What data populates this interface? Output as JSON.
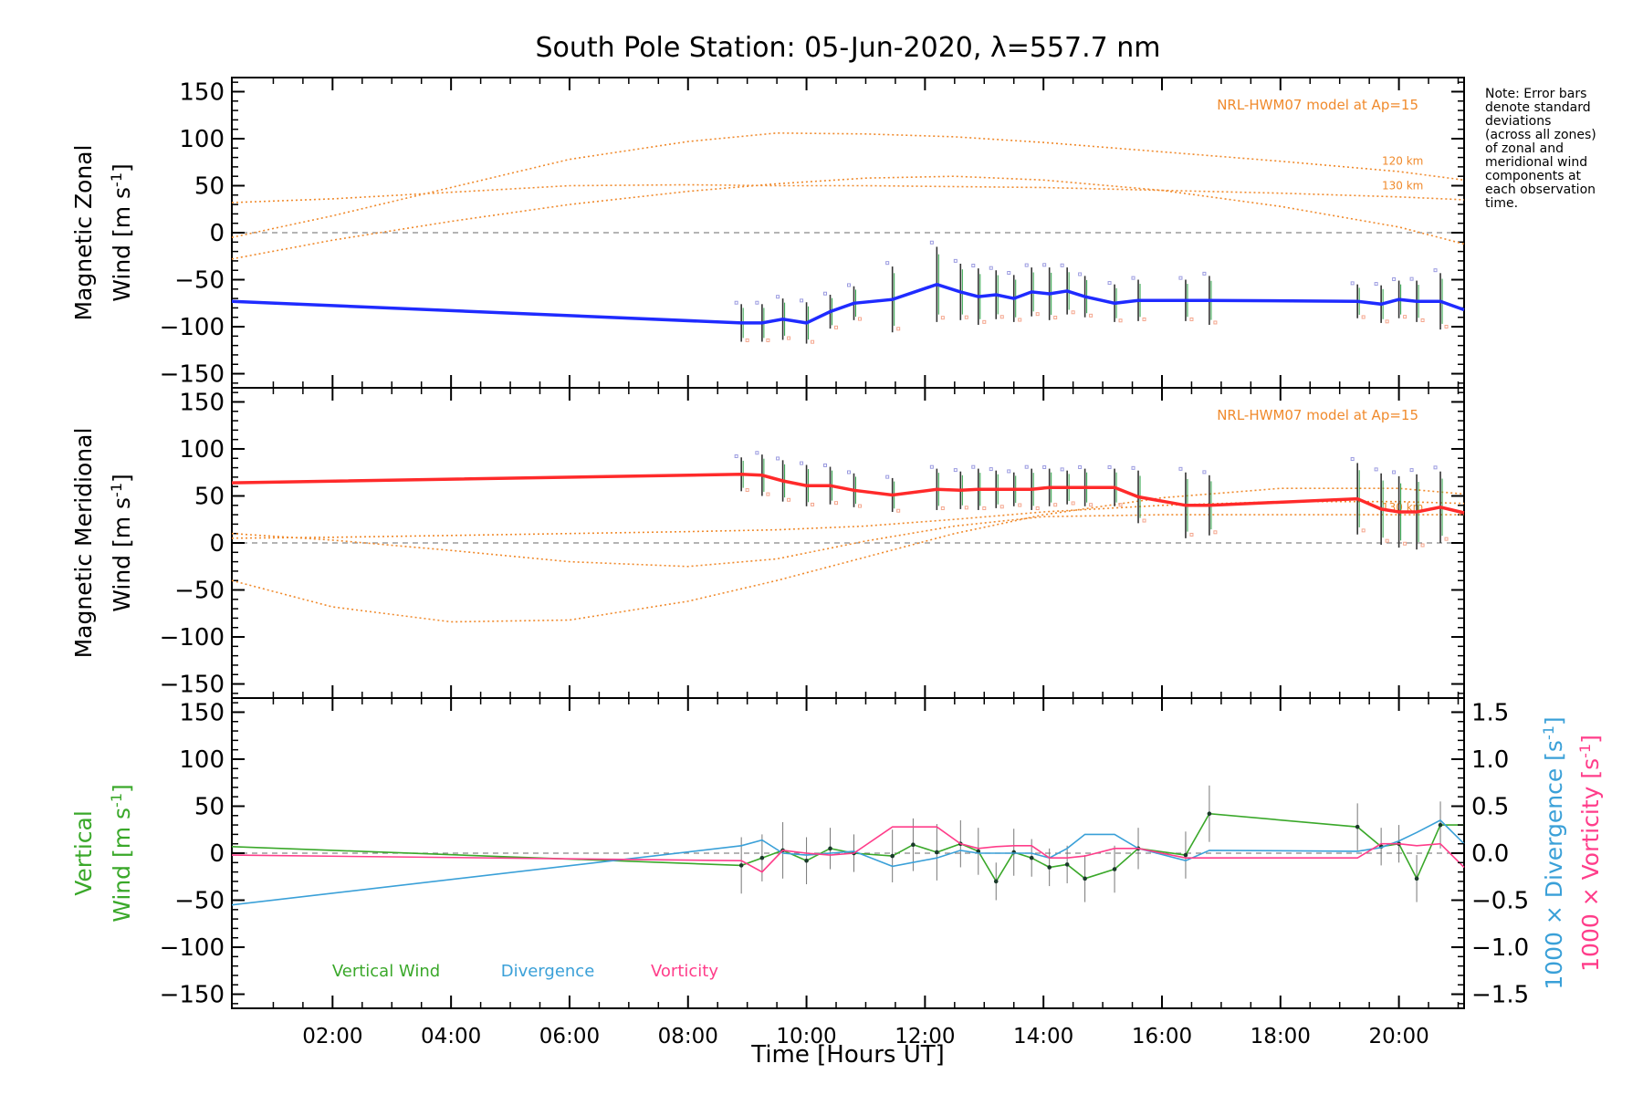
{
  "title": "South Pole Station: 05-Jun-2020, λ=557.7 nm",
  "xlabel": "Time [Hours UT]",
  "x_ticks": [
    "02:00",
    "04:00",
    "06:00",
    "08:00",
    "10:00",
    "12:00",
    "14:00",
    "16:00",
    "18:00",
    "20:00"
  ],
  "x_tick_hours": [
    2,
    4,
    6,
    8,
    10,
    12,
    14,
    16,
    18,
    20
  ],
  "note_lines": [
    "Note: Error bars",
    "denote standard",
    "deviations",
    "(across all zones)",
    "of zonal and",
    "meridional wind",
    "components at",
    "each observation",
    "time."
  ],
  "colors": {
    "zonal": "#1f2bff",
    "meridional": "#ff2a2a",
    "model": "#f08a2c",
    "vertical": "#3aa82a",
    "divergence": "#3aa0d8",
    "vorticity": "#ff3d8a",
    "zero_line": "#888888",
    "errbar": "#555555",
    "scatter_blue": "#9a9ae0",
    "scatter_red": "#f4a58c"
  },
  "chart_data": [
    {
      "type": "line",
      "id": "zonal",
      "ylabel_line1": "Magnetic Zonal",
      "ylabel_line2": "Wind [m s",
      "ylabel_sup": "-1",
      "ylabel_close": "]",
      "xlim": [
        0.3,
        21.1
      ],
      "ylim": [
        -165,
        165
      ],
      "y_ticks": [
        150,
        100,
        50,
        0,
        -50,
        -100,
        -150
      ],
      "model_label": "NRL-HWM07 model at Ap=15",
      "model_alt_labels": [
        "130 km",
        "120 km"
      ],
      "series": [
        {
          "name": "Zonal Wind",
          "x": [
            0.3,
            8.9,
            9.25,
            9.6,
            10.0,
            10.4,
            10.8,
            11.45,
            12.2,
            12.6,
            12.9,
            13.2,
            13.5,
            13.8,
            14.1,
            14.4,
            14.7,
            15.2,
            15.6,
            16.4,
            16.8,
            19.3,
            19.7,
            20.0,
            20.3,
            20.7,
            21.1
          ],
          "y": [
            -73,
            -96,
            -96,
            -92,
            -96,
            -84,
            -75,
            -71,
            -55,
            -63,
            -68,
            -66,
            -70,
            -63,
            -65,
            -62,
            -68,
            -75,
            -72,
            -72,
            -72,
            -73,
            -76,
            -71,
            -73,
            -73,
            -82
          ],
          "err": [
            0,
            20,
            20,
            22,
            22,
            18,
            18,
            35,
            40,
            30,
            30,
            26,
            25,
            26,
            28,
            25,
            22,
            20,
            22,
            22,
            26,
            18,
            20,
            20,
            22,
            30,
            0
          ]
        }
      ],
      "model_lines": [
        {
          "x": [
            0.3,
            2,
            4,
            6,
            8,
            9.5,
            11,
            12.5,
            14,
            16,
            18,
            20,
            21.1
          ],
          "y": [
            32,
            36,
            43,
            50,
            51,
            50,
            50,
            49,
            48,
            45,
            42,
            38,
            35
          ]
        },
        {
          "x": [
            0.3,
            2,
            4,
            6,
            8,
            9.5,
            11,
            12.5,
            14,
            16,
            18,
            20,
            21.1
          ],
          "y": [
            -5,
            18,
            48,
            78,
            97,
            106,
            105,
            102,
            96,
            86,
            76,
            65,
            56
          ]
        },
        {
          "x": [
            0.3,
            2,
            4,
            6,
            8,
            9.5,
            11,
            12.5,
            14,
            16,
            18,
            20,
            21.1
          ],
          "y": [
            -28,
            -8,
            12,
            30,
            44,
            52,
            58,
            60,
            56,
            45,
            28,
            6,
            -12
          ]
        }
      ]
    },
    {
      "type": "line",
      "id": "meridional",
      "ylabel_line1": "Magnetic Meridional",
      "ylabel_line2": "Wind [m s",
      "ylabel_sup": "-1",
      "ylabel_close": "]",
      "xlim": [
        0.3,
        21.1
      ],
      "ylim": [
        -165,
        165
      ],
      "y_ticks": [
        150,
        100,
        50,
        0,
        -50,
        -100,
        -150
      ],
      "model_label": "NRL-HWM07 model at Ap=15",
      "model_alt_labels": [
        "130 km"
      ],
      "series": [
        {
          "name": "Meridional Wind",
          "x": [
            0.3,
            8.9,
            9.25,
            9.6,
            10.0,
            10.4,
            10.8,
            11.45,
            12.2,
            12.6,
            12.9,
            13.2,
            13.5,
            13.8,
            14.1,
            14.4,
            14.7,
            15.2,
            15.6,
            16.4,
            16.8,
            19.3,
            19.7,
            20.0,
            20.3,
            20.7,
            21.1
          ],
          "y": [
            64,
            73,
            72,
            66,
            61,
            61,
            56,
            51,
            57,
            56,
            57,
            57,
            57,
            57,
            59,
            59,
            59,
            59,
            49,
            40,
            40,
            47,
            36,
            33,
            33,
            38,
            32
          ],
          "err": [
            0,
            18,
            22,
            22,
            22,
            20,
            18,
            18,
            22,
            20,
            22,
            20,
            18,
            22,
            20,
            18,
            20,
            20,
            28,
            35,
            32,
            38,
            38,
            38,
            40,
            38,
            0
          ]
        }
      ],
      "model_lines": [
        {
          "x": [
            0.3,
            2,
            4,
            6,
            8,
            9.5,
            11,
            12.5,
            14,
            16,
            18,
            20,
            21.1
          ],
          "y": [
            10,
            3,
            -8,
            -20,
            -25,
            -17,
            2,
            18,
            28,
            30,
            30,
            30,
            30
          ]
        },
        {
          "x": [
            0.3,
            2,
            4,
            6,
            8,
            9.5,
            11,
            12.5,
            14,
            16,
            18,
            20,
            21.1
          ],
          "y": [
            -40,
            -68,
            -84,
            -82,
            -62,
            -40,
            -15,
            10,
            30,
            48,
            58,
            58,
            52
          ]
        },
        {
          "x": [
            0.3,
            2,
            4,
            6,
            8,
            9.5,
            11,
            12.5,
            14,
            16,
            18,
            20,
            21.1
          ],
          "y": [
            5,
            6,
            8,
            10,
            12,
            14,
            18,
            25,
            33,
            40,
            44,
            44,
            42
          ]
        }
      ]
    },
    {
      "type": "line",
      "id": "vertical",
      "ylabel_line1": "Vertical",
      "ylabel_line2": "Wind [m s",
      "ylabel_sup": "-1",
      "ylabel_close": "]",
      "right_label_div": "1000 × Divergence [s",
      "right_label_vort": "1000 × Vorticity [s",
      "right_sup": "-1",
      "right_close": "]",
      "xlim": [
        0.3,
        21.1
      ],
      "ylim": [
        -165,
        165
      ],
      "y_ticks": [
        150,
        100,
        50,
        0,
        -50,
        -100,
        -150
      ],
      "y2lim": [
        -1.65,
        1.65
      ],
      "y2_ticks": [
        1.5,
        1.0,
        0.5,
        0.0,
        -0.5,
        -1.0,
        -1.5
      ],
      "y2_tick_labels": [
        "1.5",
        "1.0",
        "0.5",
        "0.0",
        "−0.5",
        "−1.0",
        "−1.5"
      ],
      "legend": [
        "Vertical Wind",
        "Divergence",
        "Vorticity"
      ],
      "series": [
        {
          "name": "Vertical Wind",
          "x": [
            0.3,
            8.9,
            9.25,
            9.6,
            10.0,
            10.4,
            10.8,
            11.45,
            11.8,
            12.2,
            12.6,
            12.9,
            13.2,
            13.5,
            13.8,
            14.1,
            14.4,
            14.7,
            15.2,
            15.6,
            16.4,
            16.8,
            19.3,
            19.7,
            20.0,
            20.3,
            20.7,
            21.1
          ],
          "y": [
            7,
            -13,
            -5,
            3,
            -8,
            5,
            0,
            -3,
            9,
            1,
            10,
            2,
            -30,
            1,
            -5,
            -15,
            -12,
            -27,
            -17,
            5,
            -2,
            42,
            28,
            7,
            10,
            -27,
            30,
            30
          ],
          "err": [
            0,
            30,
            25,
            30,
            25,
            22,
            20,
            28,
            28,
            30,
            25,
            25,
            20,
            25,
            20,
            20,
            20,
            25,
            25,
            22,
            25,
            30,
            25,
            20,
            20,
            25,
            25,
            0
          ]
        },
        {
          "name": "Divergence",
          "x": [
            0.3,
            8.9,
            9.25,
            9.6,
            10.0,
            10.4,
            10.8,
            11.45,
            12.2,
            12.6,
            12.9,
            13.2,
            13.5,
            13.8,
            14.1,
            14.4,
            14.7,
            15.2,
            15.6,
            16.4,
            16.8,
            19.3,
            19.7,
            20.0,
            20.3,
            20.7,
            21.1
          ],
          "y": [
            -0.55,
            0.08,
            0.14,
            0.0,
            -0.02,
            0.0,
            0.02,
            -0.14,
            -0.05,
            0.03,
            0.0,
            0.0,
            0.0,
            0.0,
            -0.05,
            0.05,
            0.2,
            0.2,
            0.05,
            -0.08,
            0.03,
            0.02,
            0.06,
            0.13,
            0.22,
            0.35,
            0.1
          ],
          "scale": "y2"
        },
        {
          "name": "Vorticity",
          "x": [
            0.3,
            8.9,
            9.25,
            9.6,
            10.0,
            10.4,
            10.8,
            11.45,
            12.2,
            12.6,
            12.9,
            13.2,
            13.5,
            13.8,
            14.1,
            14.4,
            14.7,
            15.2,
            15.6,
            16.4,
            16.8,
            19.3,
            19.7,
            20.0,
            20.3,
            20.7,
            21.1
          ],
          "y": [
            -0.02,
            -0.08,
            -0.2,
            0.03,
            0.0,
            -0.02,
            0.0,
            0.28,
            0.28,
            0.1,
            0.05,
            0.07,
            0.08,
            0.08,
            -0.05,
            -0.05,
            -0.03,
            0.05,
            0.05,
            -0.05,
            -0.05,
            -0.05,
            0.1,
            0.1,
            0.08,
            0.1,
            -0.15
          ],
          "scale": "y2"
        }
      ]
    }
  ]
}
